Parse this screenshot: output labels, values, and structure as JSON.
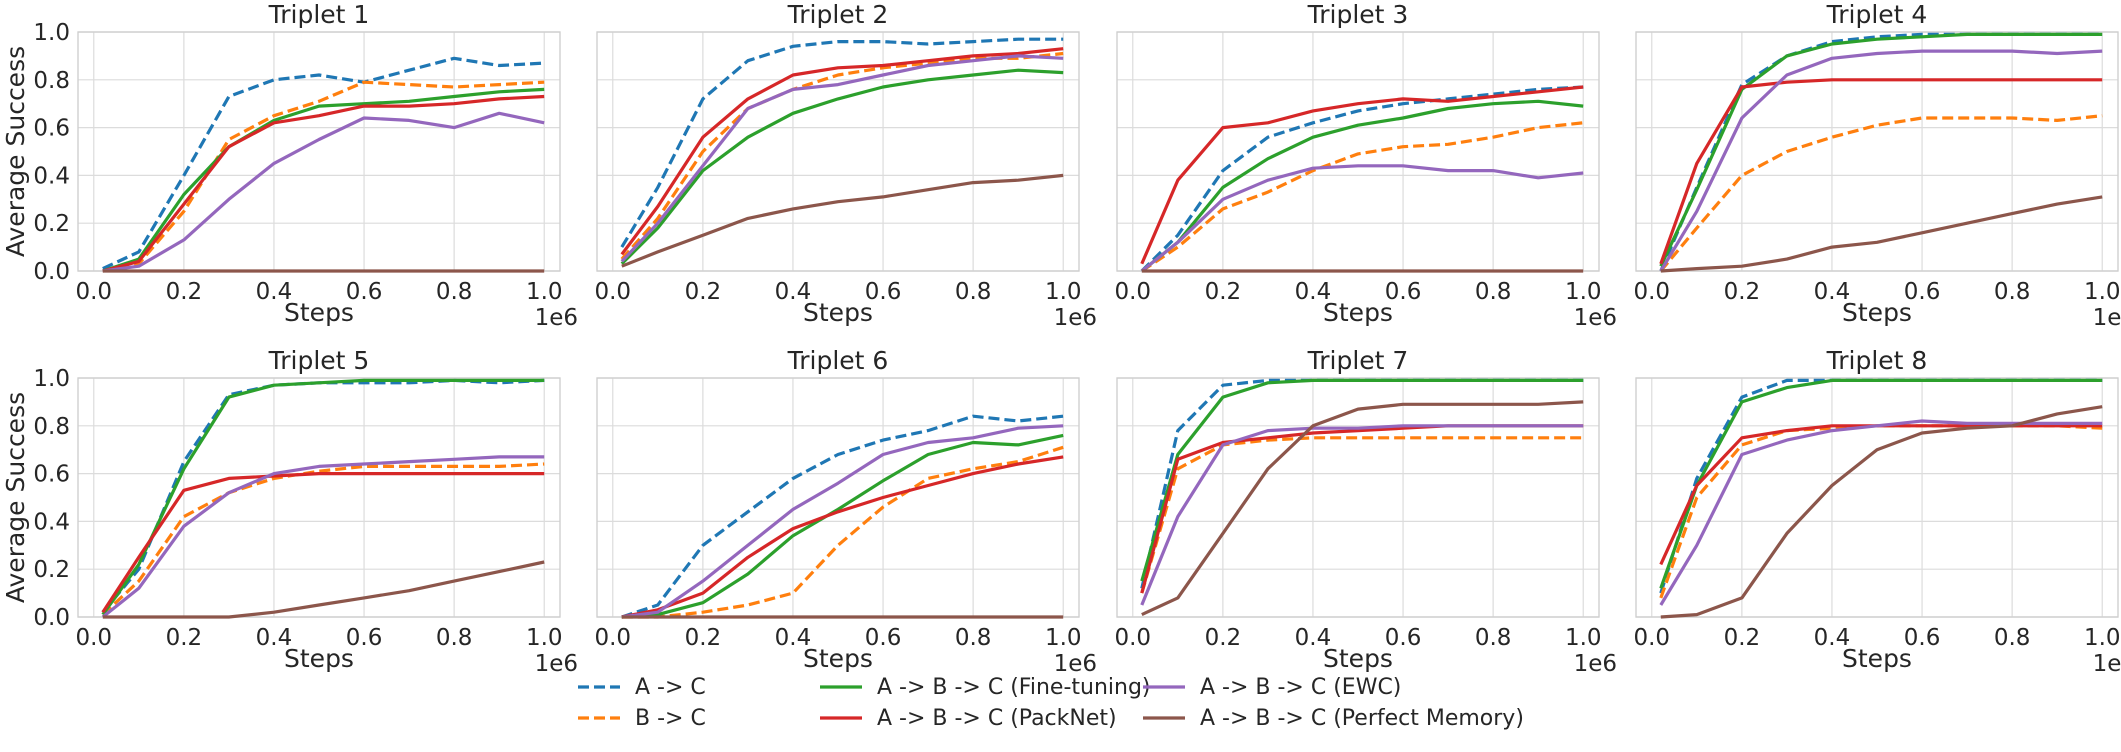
{
  "figure": {
    "ylabel": "Average Success",
    "xlabel": "Steps",
    "x_offset_label": "1e6",
    "xticks": [
      "0.0",
      "0.2",
      "0.4",
      "0.6",
      "0.8",
      "1.0"
    ],
    "yticks": [
      "0.0",
      "0.2",
      "0.4",
      "0.6",
      "0.8",
      "1.0"
    ]
  },
  "legend": [
    {
      "label": "A -> C",
      "color": "#1f77b4",
      "dash": true
    },
    {
      "label": "B -> C",
      "color": "#ff7f0e",
      "dash": true
    },
    {
      "label": "A -> B -> C (Fine-tuning)",
      "color": "#2ca02c",
      "dash": false
    },
    {
      "label": "A -> B -> C (PackNet)",
      "color": "#d62728",
      "dash": false
    },
    {
      "label": "A -> B -> C (EWC)",
      "color": "#9467bd",
      "dash": false
    },
    {
      "label": "A -> B -> C (Perfect Memory)",
      "color": "#8c564b",
      "dash": false
    }
  ],
  "chart_data": [
    {
      "type": "line",
      "title": "Triplet 1",
      "xlabel": "Steps",
      "ylabel": "Average Success",
      "xlim": [
        0,
        1.0
      ],
      "ylim": [
        0,
        1.0
      ],
      "x": [
        0.02,
        0.1,
        0.2,
        0.3,
        0.4,
        0.5,
        0.6,
        0.7,
        0.8,
        0.9,
        1.0
      ],
      "series": [
        {
          "name": "A -> C",
          "values": [
            0.01,
            0.08,
            0.4,
            0.73,
            0.8,
            0.82,
            0.79,
            0.84,
            0.89,
            0.86,
            0.87
          ]
        },
        {
          "name": "B -> C",
          "values": [
            0.0,
            0.03,
            0.25,
            0.55,
            0.65,
            0.71,
            0.79,
            0.78,
            0.77,
            0.78,
            0.79
          ]
        },
        {
          "name": "A -> B -> C (Fine-tuning)",
          "values": [
            0.0,
            0.05,
            0.32,
            0.52,
            0.63,
            0.69,
            0.7,
            0.71,
            0.73,
            0.75,
            0.76
          ]
        },
        {
          "name": "A -> B -> C (PackNet)",
          "values": [
            0.0,
            0.04,
            0.28,
            0.52,
            0.62,
            0.65,
            0.69,
            0.69,
            0.7,
            0.72,
            0.73
          ]
        },
        {
          "name": "A -> B -> C (EWC)",
          "values": [
            0.0,
            0.02,
            0.13,
            0.3,
            0.45,
            0.55,
            0.64,
            0.63,
            0.6,
            0.66,
            0.62
          ]
        },
        {
          "name": "A -> B -> C (Perfect Memory)",
          "values": [
            0.0,
            0.0,
            0.0,
            0.0,
            0.0,
            0.0,
            0.0,
            0.0,
            0.0,
            0.0,
            0.0
          ]
        }
      ]
    },
    {
      "type": "line",
      "title": "Triplet 2",
      "xlabel": "Steps",
      "ylabel": "Average Success",
      "xlim": [
        0,
        1.0
      ],
      "ylim": [
        0,
        1.0
      ],
      "x": [
        0.02,
        0.1,
        0.2,
        0.3,
        0.4,
        0.5,
        0.6,
        0.7,
        0.8,
        0.9,
        1.0
      ],
      "series": [
        {
          "name": "A -> C",
          "values": [
            0.1,
            0.35,
            0.72,
            0.88,
            0.94,
            0.96,
            0.96,
            0.95,
            0.96,
            0.97,
            0.97
          ]
        },
        {
          "name": "B -> C",
          "values": [
            0.05,
            0.22,
            0.5,
            0.68,
            0.76,
            0.82,
            0.85,
            0.87,
            0.89,
            0.89,
            0.91
          ]
        },
        {
          "name": "A -> B -> C (Fine-tuning)",
          "values": [
            0.03,
            0.18,
            0.42,
            0.56,
            0.66,
            0.72,
            0.77,
            0.8,
            0.82,
            0.84,
            0.83
          ]
        },
        {
          "name": "A -> B -> C (PackNet)",
          "values": [
            0.07,
            0.27,
            0.56,
            0.72,
            0.82,
            0.85,
            0.86,
            0.88,
            0.9,
            0.91,
            0.93
          ]
        },
        {
          "name": "A -> B -> C (EWC)",
          "values": [
            0.04,
            0.2,
            0.44,
            0.68,
            0.76,
            0.78,
            0.82,
            0.86,
            0.88,
            0.9,
            0.89
          ]
        },
        {
          "name": "A -> B -> C (Perfect Memory)",
          "values": [
            0.02,
            0.08,
            0.15,
            0.22,
            0.26,
            0.29,
            0.31,
            0.34,
            0.37,
            0.38,
            0.4
          ]
        }
      ]
    },
    {
      "type": "line",
      "title": "Triplet 3",
      "xlabel": "Steps",
      "ylabel": "Average Success",
      "xlim": [
        0,
        1.0
      ],
      "ylim": [
        0,
        1.0
      ],
      "x": [
        0.02,
        0.1,
        0.2,
        0.3,
        0.4,
        0.5,
        0.6,
        0.7,
        0.8,
        0.9,
        1.0
      ],
      "series": [
        {
          "name": "A -> C",
          "values": [
            0.0,
            0.15,
            0.42,
            0.56,
            0.62,
            0.67,
            0.7,
            0.72,
            0.74,
            0.76,
            0.77
          ]
        },
        {
          "name": "B -> C",
          "values": [
            0.0,
            0.1,
            0.26,
            0.33,
            0.42,
            0.49,
            0.52,
            0.53,
            0.56,
            0.6,
            0.62
          ]
        },
        {
          "name": "A -> B -> C (Fine-tuning)",
          "values": [
            0.0,
            0.12,
            0.35,
            0.47,
            0.56,
            0.61,
            0.64,
            0.68,
            0.7,
            0.71,
            0.69
          ]
        },
        {
          "name": "A -> B -> C (PackNet)",
          "values": [
            0.03,
            0.38,
            0.6,
            0.62,
            0.67,
            0.7,
            0.72,
            0.71,
            0.73,
            0.75,
            0.77
          ]
        },
        {
          "name": "A -> B -> C (EWC)",
          "values": [
            0.0,
            0.12,
            0.3,
            0.38,
            0.43,
            0.44,
            0.44,
            0.42,
            0.42,
            0.39,
            0.41
          ]
        },
        {
          "name": "A -> B -> C (Perfect Memory)",
          "values": [
            0.0,
            0.0,
            0.0,
            0.0,
            0.0,
            0.0,
            0.0,
            0.0,
            0.0,
            0.0,
            0.0
          ]
        }
      ]
    },
    {
      "type": "line",
      "title": "Triplet 4",
      "xlabel": "Steps",
      "ylabel": "Average Success",
      "xlim": [
        0,
        1.0
      ],
      "ylim": [
        0,
        1.0
      ],
      "x": [
        0.02,
        0.1,
        0.2,
        0.3,
        0.4,
        0.5,
        0.6,
        0.7,
        0.8,
        0.9,
        1.0
      ],
      "series": [
        {
          "name": "A -> C",
          "values": [
            0.0,
            0.35,
            0.78,
            0.9,
            0.96,
            0.98,
            0.99,
            0.99,
            0.99,
            0.99,
            0.99
          ]
        },
        {
          "name": "B -> C",
          "values": [
            0.0,
            0.18,
            0.4,
            0.5,
            0.56,
            0.61,
            0.64,
            0.64,
            0.64,
            0.63,
            0.65
          ]
        },
        {
          "name": "A -> B -> C (Fine-tuning)",
          "values": [
            0.02,
            0.34,
            0.76,
            0.9,
            0.95,
            0.97,
            0.98,
            0.99,
            0.99,
            0.99,
            0.99
          ]
        },
        {
          "name": "A -> B -> C (PackNet)",
          "values": [
            0.03,
            0.45,
            0.77,
            0.79,
            0.8,
            0.8,
            0.8,
            0.8,
            0.8,
            0.8,
            0.8
          ]
        },
        {
          "name": "A -> B -> C (EWC)",
          "values": [
            0.0,
            0.25,
            0.64,
            0.82,
            0.89,
            0.91,
            0.92,
            0.92,
            0.92,
            0.91,
            0.92
          ]
        },
        {
          "name": "A -> B -> C (Perfect Memory)",
          "values": [
            0.0,
            0.01,
            0.02,
            0.05,
            0.1,
            0.12,
            0.16,
            0.2,
            0.24,
            0.28,
            0.31
          ]
        }
      ]
    },
    {
      "type": "line",
      "title": "Triplet 5",
      "xlabel": "Steps",
      "ylabel": "Average Success",
      "xlim": [
        0,
        1.0
      ],
      "ylim": [
        0,
        1.0
      ],
      "x": [
        0.02,
        0.1,
        0.2,
        0.3,
        0.4,
        0.5,
        0.6,
        0.7,
        0.8,
        0.9,
        1.0
      ],
      "series": [
        {
          "name": "A -> C",
          "values": [
            0.02,
            0.2,
            0.65,
            0.93,
            0.97,
            0.98,
            0.98,
            0.98,
            0.99,
            0.98,
            0.99
          ]
        },
        {
          "name": "B -> C",
          "values": [
            0.01,
            0.15,
            0.42,
            0.52,
            0.58,
            0.61,
            0.63,
            0.63,
            0.63,
            0.63,
            0.64
          ]
        },
        {
          "name": "A -> B -> C (Fine-tuning)",
          "values": [
            0.01,
            0.22,
            0.62,
            0.92,
            0.97,
            0.98,
            0.99,
            0.99,
            0.99,
            0.99,
            0.99
          ]
        },
        {
          "name": "A -> B -> C (PackNet)",
          "values": [
            0.02,
            0.25,
            0.53,
            0.58,
            0.59,
            0.6,
            0.6,
            0.6,
            0.6,
            0.6,
            0.6
          ]
        },
        {
          "name": "A -> B -> C (EWC)",
          "values": [
            0.0,
            0.12,
            0.38,
            0.52,
            0.6,
            0.63,
            0.64,
            0.65,
            0.66,
            0.67,
            0.67
          ]
        },
        {
          "name": "A -> B -> C (Perfect Memory)",
          "values": [
            0.0,
            0.0,
            0.0,
            0.0,
            0.02,
            0.05,
            0.08,
            0.11,
            0.15,
            0.19,
            0.23
          ]
        }
      ]
    },
    {
      "type": "line",
      "title": "Triplet 6",
      "xlabel": "Steps",
      "ylabel": "Average Success",
      "xlim": [
        0,
        1.0
      ],
      "ylim": [
        0,
        1.0
      ],
      "x": [
        0.02,
        0.1,
        0.2,
        0.3,
        0.4,
        0.5,
        0.6,
        0.7,
        0.8,
        0.9,
        1.0
      ],
      "series": [
        {
          "name": "A -> C",
          "values": [
            0.0,
            0.05,
            0.3,
            0.44,
            0.58,
            0.68,
            0.74,
            0.78,
            0.84,
            0.82,
            0.84
          ]
        },
        {
          "name": "B -> C",
          "values": [
            0.0,
            0.0,
            0.02,
            0.05,
            0.1,
            0.3,
            0.46,
            0.58,
            0.62,
            0.65,
            0.71
          ]
        },
        {
          "name": "A -> B -> C (Fine-tuning)",
          "values": [
            0.0,
            0.01,
            0.06,
            0.18,
            0.34,
            0.45,
            0.57,
            0.68,
            0.73,
            0.72,
            0.76
          ]
        },
        {
          "name": "A -> B -> C (PackNet)",
          "values": [
            0.0,
            0.03,
            0.1,
            0.25,
            0.37,
            0.44,
            0.5,
            0.55,
            0.6,
            0.64,
            0.67
          ]
        },
        {
          "name": "A -> B -> C (EWC)",
          "values": [
            0.0,
            0.02,
            0.15,
            0.3,
            0.45,
            0.56,
            0.68,
            0.73,
            0.75,
            0.79,
            0.8
          ]
        },
        {
          "name": "A -> B -> C (Perfect Memory)",
          "values": [
            0.0,
            0.0,
            0.0,
            0.0,
            0.0,
            0.0,
            0.0,
            0.0,
            0.0,
            0.0,
            0.0
          ]
        }
      ]
    },
    {
      "type": "line",
      "title": "Triplet 7",
      "xlabel": "Steps",
      "ylabel": "Average Success",
      "xlim": [
        0,
        1.0
      ],
      "ylim": [
        0,
        1.0
      ],
      "x": [
        0.02,
        0.1,
        0.2,
        0.3,
        0.4,
        0.5,
        0.6,
        0.7,
        0.8,
        0.9,
        1.0
      ],
      "series": [
        {
          "name": "A -> C",
          "values": [
            0.12,
            0.78,
            0.97,
            0.99,
            0.99,
            0.99,
            0.99,
            0.99,
            0.99,
            0.99,
            0.99
          ]
        },
        {
          "name": "B -> C",
          "values": [
            0.1,
            0.62,
            0.72,
            0.74,
            0.75,
            0.75,
            0.75,
            0.75,
            0.75,
            0.75,
            0.75
          ]
        },
        {
          "name": "A -> B -> C (Fine-tuning)",
          "values": [
            0.15,
            0.68,
            0.92,
            0.98,
            0.99,
            0.99,
            0.99,
            0.99,
            0.99,
            0.99,
            0.99
          ]
        },
        {
          "name": "A -> B -> C (PackNet)",
          "values": [
            0.1,
            0.66,
            0.73,
            0.75,
            0.77,
            0.78,
            0.79,
            0.8,
            0.8,
            0.8,
            0.8
          ]
        },
        {
          "name": "A -> B -> C (EWC)",
          "values": [
            0.05,
            0.42,
            0.72,
            0.78,
            0.79,
            0.79,
            0.8,
            0.8,
            0.8,
            0.8,
            0.8
          ]
        },
        {
          "name": "A -> B -> C (Perfect Memory)",
          "values": [
            0.01,
            0.08,
            0.35,
            0.62,
            0.8,
            0.87,
            0.89,
            0.89,
            0.89,
            0.89,
            0.9
          ]
        }
      ]
    },
    {
      "type": "line",
      "title": "Triplet 8",
      "xlabel": "Steps",
      "ylabel": "Average Success",
      "xlim": [
        0,
        1.0
      ],
      "ylim": [
        0,
        1.0
      ],
      "x": [
        0.02,
        0.1,
        0.2,
        0.3,
        0.4,
        0.5,
        0.6,
        0.7,
        0.8,
        0.9,
        1.0
      ],
      "series": [
        {
          "name": "A -> C",
          "values": [
            0.1,
            0.58,
            0.92,
            0.99,
            0.99,
            0.99,
            0.99,
            0.99,
            0.99,
            0.99,
            0.99
          ]
        },
        {
          "name": "B -> C",
          "values": [
            0.08,
            0.5,
            0.72,
            0.78,
            0.79,
            0.8,
            0.8,
            0.8,
            0.8,
            0.8,
            0.79
          ]
        },
        {
          "name": "A -> B -> C (Fine-tuning)",
          "values": [
            0.12,
            0.55,
            0.9,
            0.96,
            0.99,
            0.99,
            0.99,
            0.99,
            0.99,
            0.99,
            0.99
          ]
        },
        {
          "name": "A -> B -> C (PackNet)",
          "values": [
            0.22,
            0.55,
            0.75,
            0.78,
            0.8,
            0.8,
            0.8,
            0.8,
            0.8,
            0.8,
            0.8
          ]
        },
        {
          "name": "A -> B -> C (EWC)",
          "values": [
            0.05,
            0.3,
            0.68,
            0.74,
            0.78,
            0.8,
            0.82,
            0.81,
            0.81,
            0.81,
            0.81
          ]
        },
        {
          "name": "A -> B -> C (Perfect Memory)",
          "values": [
            0.0,
            0.01,
            0.08,
            0.35,
            0.55,
            0.7,
            0.77,
            0.79,
            0.8,
            0.85,
            0.88
          ]
        }
      ]
    }
  ]
}
